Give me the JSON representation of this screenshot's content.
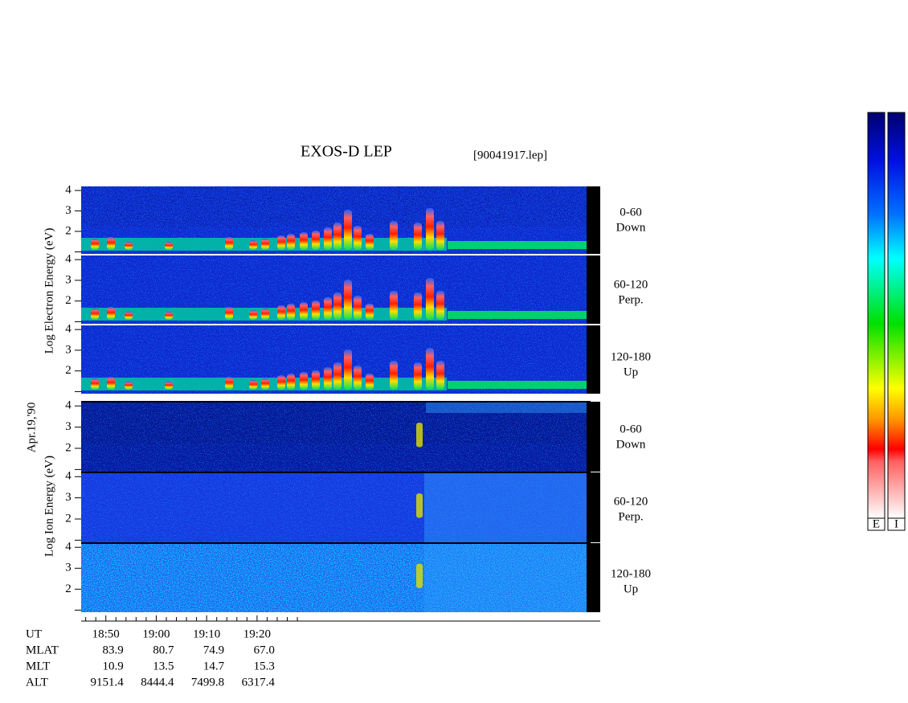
{
  "title": "EXOS-D LEP",
  "file": "[90041917.lep]",
  "date": "Apr.19,'90",
  "electron": {
    "ylabel": "Log Electron Energy (eV)",
    "ylim": [
      0.9,
      4.2
    ],
    "yticks": [
      2,
      3,
      4
    ],
    "yticks_unlabeled": [
      1
    ],
    "panels": [
      {
        "pitch": "0-60",
        "direction": "Down"
      },
      {
        "pitch": "60-120",
        "direction": "Perp."
      },
      {
        "pitch": "120-180",
        "direction": "Up"
      }
    ]
  },
  "ion": {
    "ylabel": "Log Ion Energy (eV)",
    "ylim": [
      0.9,
      4.2
    ],
    "yticks": [
      2,
      3,
      4
    ],
    "yticks_unlabeled": [
      1
    ],
    "panels": [
      {
        "pitch": "0-60",
        "direction": "Down"
      },
      {
        "pitch": "60-120",
        "direction": "Perp."
      },
      {
        "pitch": "120-180",
        "direction": "Up"
      }
    ]
  },
  "time_axis": {
    "xlim": [
      1125.1,
      1228.1
    ],
    "xticks": [
      {
        "value": 1130,
        "label": "18:50"
      },
      {
        "value": 1140,
        "label": "19:00"
      },
      {
        "value": 1150,
        "label": "19:10"
      },
      {
        "value": 1160,
        "label": "19:20"
      }
    ],
    "minor_ticks": [
      1126,
      1128,
      1132,
      1134,
      1136,
      1138,
      1142,
      1144,
      1146,
      1148,
      1152,
      1154,
      1156,
      1158,
      1162,
      1164,
      1166,
      1168
    ]
  },
  "orbit": {
    "rows": [
      {
        "name": "UT",
        "values": []
      },
      {
        "name": "MLAT",
        "values": [
          "83.9",
          "80.7",
          "74.9",
          "67.0"
        ]
      },
      {
        "name": "MLT",
        "values": [
          "10.9",
          "13.5",
          "14.7",
          "15.3"
        ]
      },
      {
        "name": "ALT",
        "values": [
          "9151.4",
          "8444.4",
          "7499.8",
          "6317.4"
        ]
      }
    ]
  },
  "colorbars": [
    "E",
    "I"
  ]
}
